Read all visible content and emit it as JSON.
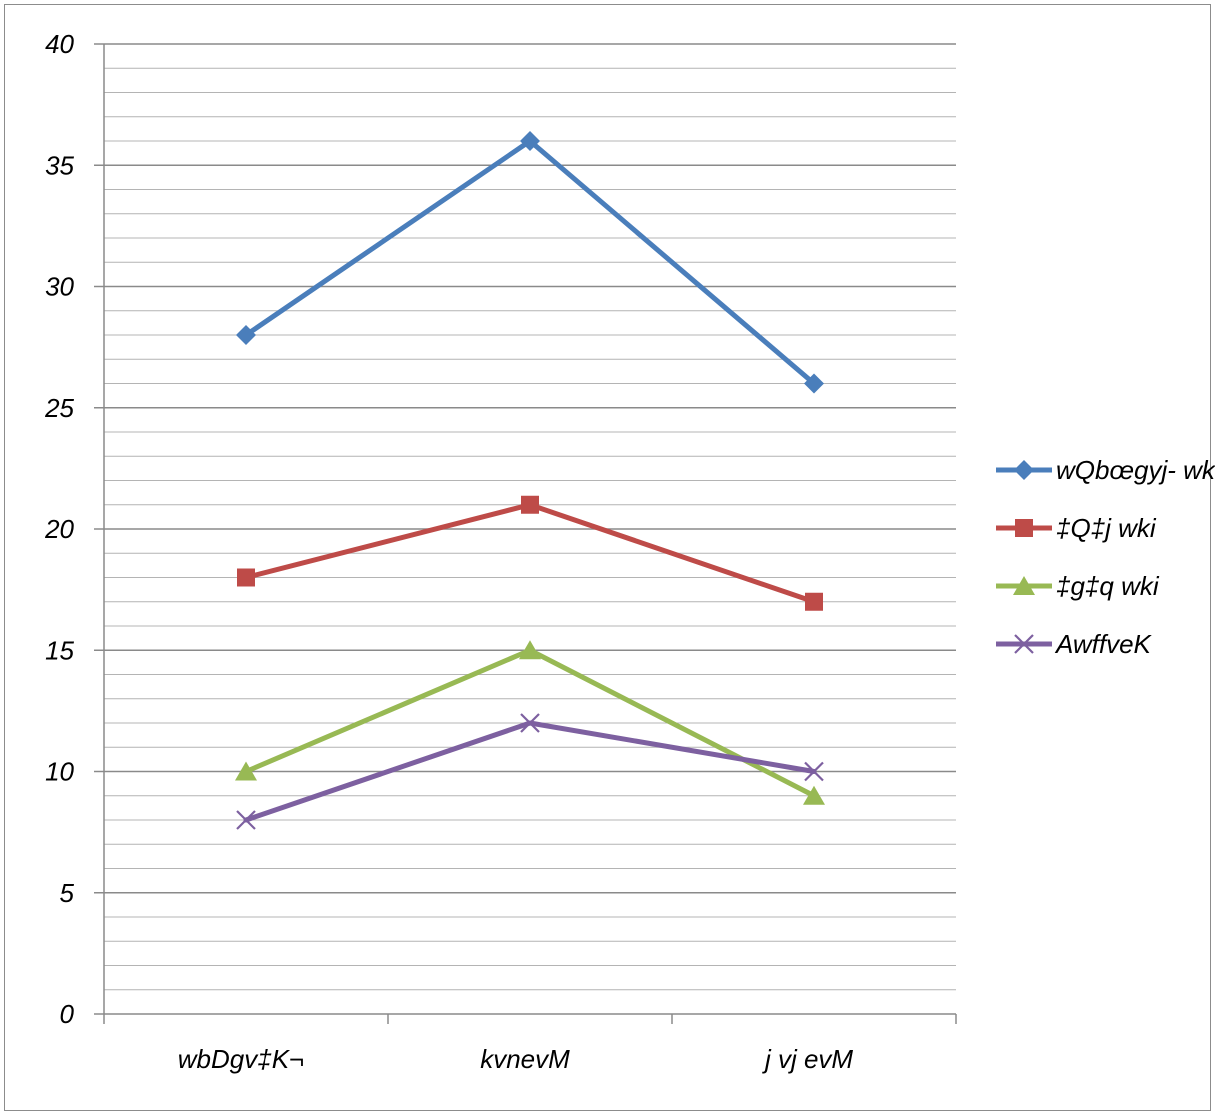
{
  "chart_data": {
    "type": "line",
    "categories": [
      "wbDgv‡K¬",
      "kvnevM",
      "j vj evM"
    ],
    "series": [
      {
        "name": "wQbœgyj- wki",
        "color": "#4a7ebb",
        "marker": "diamond",
        "values": [
          28,
          36,
          26
        ]
      },
      {
        "name": "‡Q‡j wki",
        "color": "#be4b48",
        "marker": "square",
        "values": [
          18,
          21,
          17
        ]
      },
      {
        "name": "‡g‡q wki",
        "color": "#98b954",
        "marker": "triangle",
        "values": [
          10,
          15,
          9
        ]
      },
      {
        "name": "AwffveK",
        "color": "#7d60a0",
        "marker": "x",
        "values": [
          8,
          12,
          10
        ]
      }
    ],
    "ylim": [
      0,
      40
    ],
    "yticks": [
      0,
      5,
      10,
      15,
      20,
      25,
      30,
      35,
      40
    ],
    "minor_grid_step": 1,
    "grid": true,
    "legend": "right",
    "title": "",
    "xlabel": "",
    "ylabel": ""
  }
}
